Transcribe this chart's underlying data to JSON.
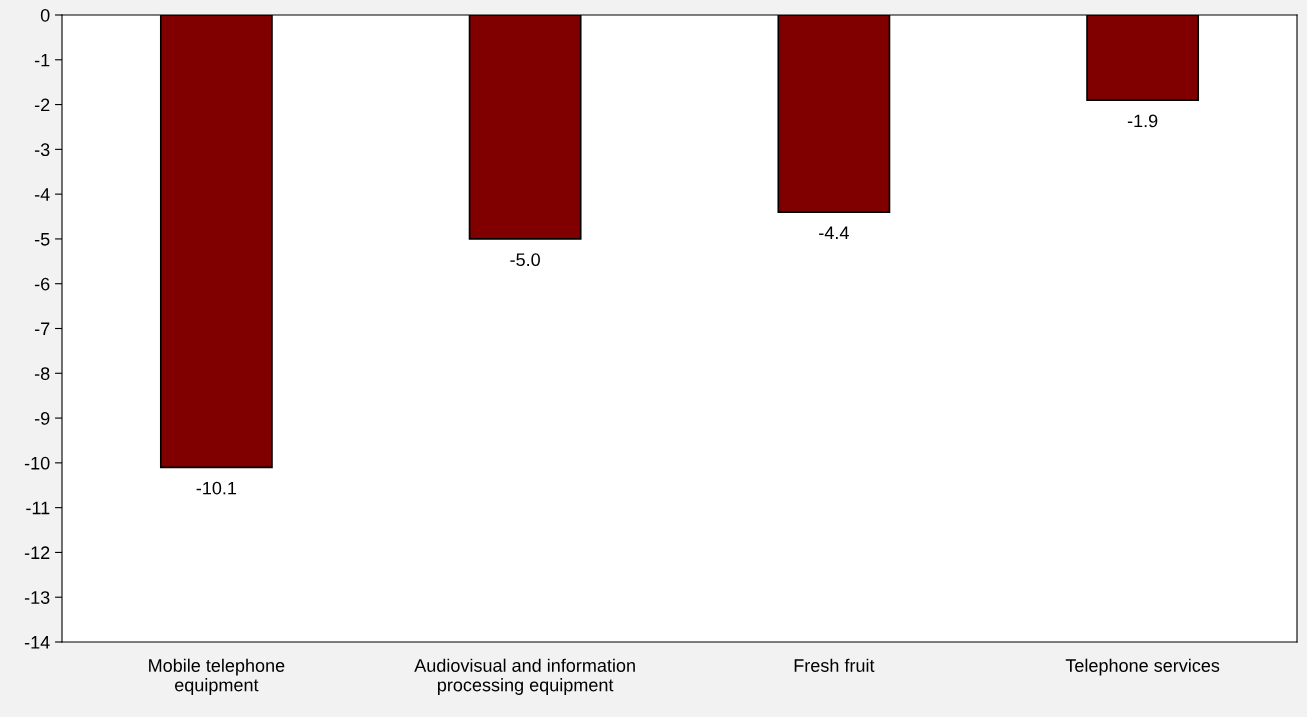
{
  "chart_data": {
    "type": "bar",
    "categories": [
      "Mobile telephone\nequipment",
      "Audiovisual and information\nprocessing equipment",
      "Fresh fruit",
      "Telephone services"
    ],
    "values": [
      -10.1,
      -5.0,
      -4.4,
      -1.9
    ],
    "value_labels": [
      "-10.1",
      "-5.0",
      "-4.4",
      "-1.9"
    ],
    "color": "#800000",
    "ylim": [
      -14,
      0
    ],
    "yticks": [
      0,
      -1,
      -2,
      -3,
      -4,
      -5,
      -6,
      -7,
      -8,
      -9,
      -10,
      -11,
      -12,
      -13,
      -14
    ],
    "grid": false
  }
}
